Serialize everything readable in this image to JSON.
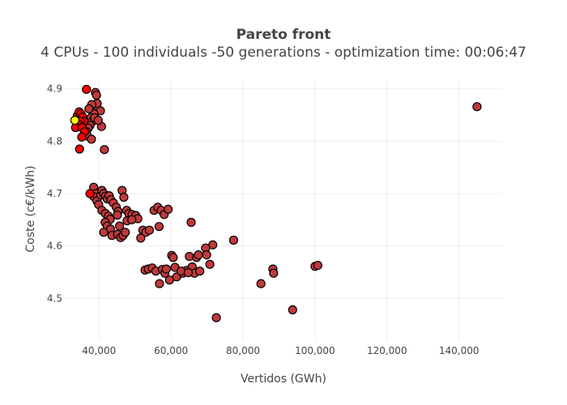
{
  "chart_data": {
    "type": "scatter",
    "title": "Pareto front",
    "subtitle": "4 CPUs - 100 individuals -50 generations - optimization time: 00:06:47",
    "xlabel": "Vertidos (GWh)",
    "ylabel": "Coste (c€/kWh)",
    "xlim": [
      30500,
      152000
    ],
    "ylim": [
      4.42,
      4.915
    ],
    "x_ticks": [
      40000,
      60000,
      80000,
      100000,
      120000,
      140000
    ],
    "x_tick_labels": [
      "40,000",
      "60,000",
      "80,000",
      "100,000",
      "120,000",
      "140,000"
    ],
    "y_ticks": [
      4.5,
      4.6,
      4.7,
      4.8,
      4.9
    ],
    "y_tick_labels": [
      "4.5",
      "4.6",
      "4.7",
      "4.8",
      "4.9"
    ],
    "grid": true,
    "legend": "none",
    "colors": {
      "pareto": "#c0393b",
      "best_cluster": "#ff0000",
      "selected": "#ffff00",
      "marker_outline": "#000000",
      "grid": "#eeeeee"
    },
    "series": [
      {
        "group": "pareto",
        "points": [
          [
            145000,
            4.866
          ],
          [
            39000,
            4.893
          ],
          [
            39300,
            4.888
          ],
          [
            39500,
            4.872
          ],
          [
            40400,
            4.858
          ],
          [
            40700,
            4.828
          ],
          [
            41500,
            4.784
          ],
          [
            38000,
            4.87
          ],
          [
            38300,
            4.856
          ],
          [
            38600,
            4.852
          ],
          [
            37800,
            4.845
          ],
          [
            38200,
            4.838
          ],
          [
            37500,
            4.83
          ],
          [
            37000,
            4.825
          ],
          [
            36500,
            4.818
          ],
          [
            36800,
            4.81
          ],
          [
            37200,
            4.862
          ],
          [
            38800,
            4.845
          ],
          [
            39800,
            4.84
          ],
          [
            37900,
            4.804
          ],
          [
            38500,
            4.712
          ],
          [
            39200,
            4.7
          ],
          [
            38600,
            4.694
          ],
          [
            39400,
            4.686
          ],
          [
            39900,
            4.679
          ],
          [
            40500,
            4.697
          ],
          [
            40800,
            4.706
          ],
          [
            41300,
            4.7
          ],
          [
            41800,
            4.695
          ],
          [
            42300,
            4.69
          ],
          [
            42800,
            4.696
          ],
          [
            43300,
            4.688
          ],
          [
            44000,
            4.682
          ],
          [
            44800,
            4.674
          ],
          [
            45300,
            4.666
          ],
          [
            46400,
            4.706
          ],
          [
            46900,
            4.693
          ],
          [
            47700,
            4.668
          ],
          [
            48300,
            4.662
          ],
          [
            49200,
            4.66
          ],
          [
            50200,
            4.658
          ],
          [
            50800,
            4.652
          ],
          [
            40800,
            4.668
          ],
          [
            41800,
            4.662
          ],
          [
            42600,
            4.657
          ],
          [
            43100,
            4.651
          ],
          [
            41700,
            4.645
          ],
          [
            42300,
            4.638
          ],
          [
            43200,
            4.632
          ],
          [
            41300,
            4.626
          ],
          [
            43600,
            4.62
          ],
          [
            45200,
            4.622
          ],
          [
            46000,
            4.616
          ],
          [
            46700,
            4.62
          ],
          [
            47300,
            4.626
          ],
          [
            45700,
            4.638
          ],
          [
            47800,
            4.648
          ],
          [
            49100,
            4.65
          ],
          [
            45100,
            4.659
          ],
          [
            52200,
            4.63
          ],
          [
            53000,
            4.626
          ],
          [
            51600,
            4.615
          ],
          [
            54000,
            4.63
          ],
          [
            55300,
            4.668
          ],
          [
            56300,
            4.674
          ],
          [
            57300,
            4.668
          ],
          [
            58100,
            4.66
          ],
          [
            59200,
            4.67
          ],
          [
            56700,
            4.637
          ],
          [
            65600,
            4.645
          ],
          [
            71600,
            4.602
          ],
          [
            77400,
            4.611
          ],
          [
            52800,
            4.554
          ],
          [
            53700,
            4.556
          ],
          [
            54800,
            4.558
          ],
          [
            55800,
            4.552
          ],
          [
            56800,
            4.528
          ],
          [
            57600,
            4.555
          ],
          [
            58300,
            4.548
          ],
          [
            59600,
            4.535
          ],
          [
            60200,
            4.582
          ],
          [
            60600,
            4.578
          ],
          [
            61600,
            4.541
          ],
          [
            61100,
            4.559
          ],
          [
            63300,
            4.548
          ],
          [
            64300,
            4.553
          ],
          [
            65100,
            4.58
          ],
          [
            65900,
            4.56
          ],
          [
            66500,
            4.548
          ],
          [
            67100,
            4.578
          ],
          [
            67600,
            4.583
          ],
          [
            68000,
            4.552
          ],
          [
            69600,
            4.596
          ],
          [
            69900,
            4.583
          ],
          [
            70800,
            4.565
          ],
          [
            72600,
            4.463
          ],
          [
            85000,
            4.528
          ],
          [
            88300,
            4.556
          ],
          [
            88500,
            4.548
          ],
          [
            93800,
            4.478
          ],
          [
            100000,
            4.561
          ],
          [
            100800,
            4.563
          ],
          [
            58700,
            4.556
          ],
          [
            62800,
            4.552
          ],
          [
            64800,
            4.549
          ]
        ]
      },
      {
        "group": "best_cluster",
        "points": [
          [
            36500,
            4.899
          ],
          [
            34000,
            4.849
          ],
          [
            34500,
            4.856
          ],
          [
            35000,
            4.852
          ],
          [
            35500,
            4.846
          ],
          [
            35800,
            4.838
          ],
          [
            34800,
            4.838
          ],
          [
            34300,
            4.832
          ],
          [
            33500,
            4.826
          ],
          [
            35300,
            4.826
          ],
          [
            36000,
            4.818
          ],
          [
            35200,
            4.808
          ],
          [
            34600,
            4.785
          ],
          [
            37500,
            4.7
          ]
        ]
      },
      {
        "group": "selected",
        "points": [
          [
            33300,
            4.84
          ]
        ]
      }
    ]
  }
}
